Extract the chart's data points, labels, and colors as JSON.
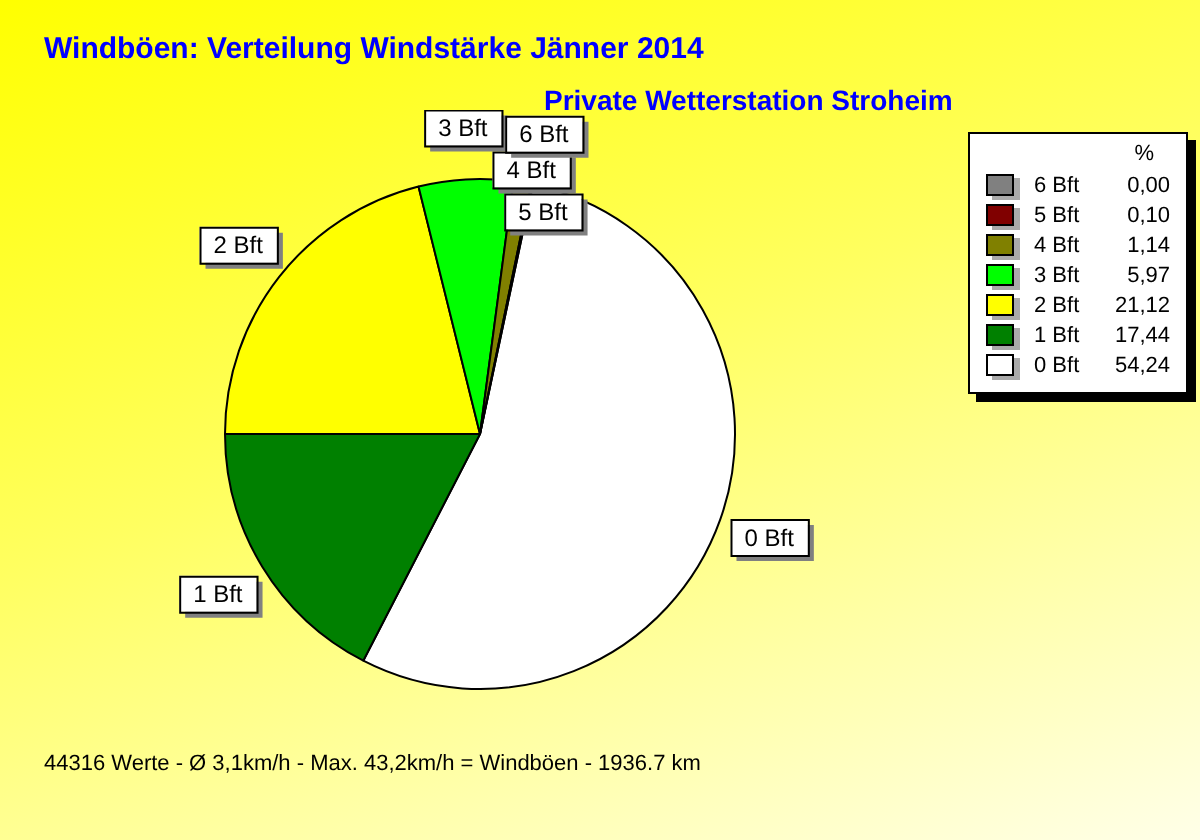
{
  "chart_data": {
    "type": "pie",
    "title": "Windböen: Verteilung Windstärke  Jänner 2014",
    "subtitle": "Private Wetterstation Stroheim",
    "categories": [
      "6 Bft",
      "5 Bft",
      "4 Bft",
      "3 Bft",
      "2 Bft",
      "1 Bft",
      "0 Bft"
    ],
    "values": [
      0,
      0.1,
      1.14,
      5.97,
      21.12,
      17.44,
      54.24
    ],
    "value_labels": [
      "0,00",
      "0,10",
      "1,14",
      "5,97",
      "21,12",
      "17,44",
      "54,24"
    ],
    "colors": [
      "#808080",
      "#800000",
      "#808000",
      "#00ff00",
      "#ffff00",
      "#008000",
      "#ffffff"
    ],
    "legend_title": "%",
    "legend": "right",
    "annotations": [
      "44316 Werte   -   Ø 3,1km/h  -  Max. 43,2km/h = Windböen   -   1936.7 km"
    ]
  }
}
